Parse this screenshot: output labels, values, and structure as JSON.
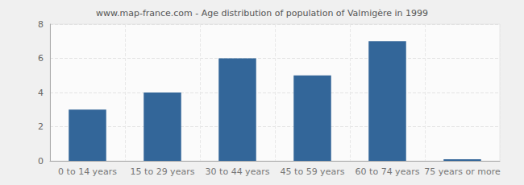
{
  "chart_data": {
    "type": "bar",
    "title": "www.map-france.com - Age distribution of population of Valmigère in 1999",
    "categories": [
      "0 to 14 years",
      "15 to 29 years",
      "30 to 44 years",
      "45 to 59 years",
      "60 to 74 years",
      "75 years or more"
    ],
    "values": [
      3,
      4,
      6,
      5,
      7,
      0
    ],
    "color": "#336699",
    "ylim": [
      0,
      8
    ],
    "yticks": [
      0,
      2,
      4,
      6,
      8
    ],
    "grid": true
  }
}
